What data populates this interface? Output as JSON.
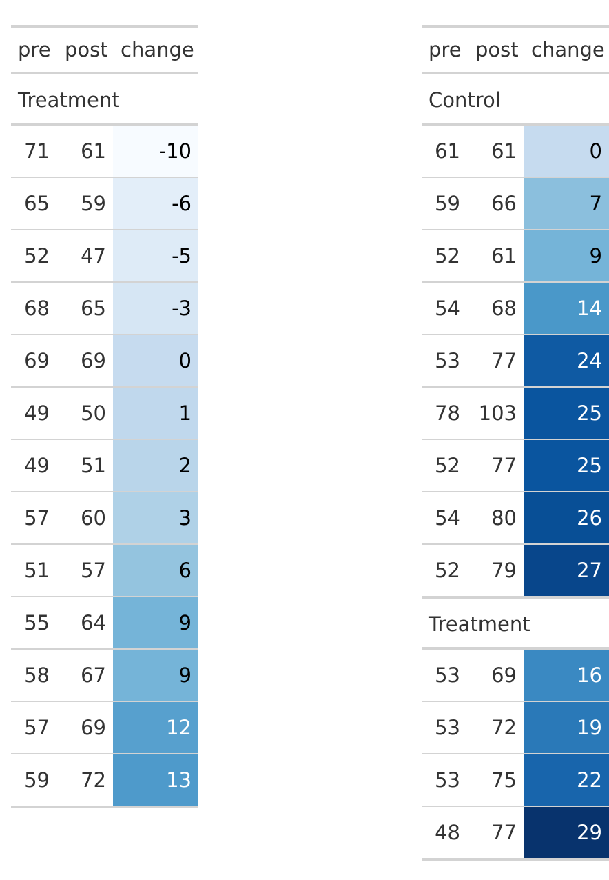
{
  "columns": [
    "pre",
    "post",
    "change"
  ],
  "tables": [
    {
      "groups": [
        {
          "label": "Treatment",
          "rows": [
            {
              "pre": "71",
              "post": "61",
              "change": "-10",
              "fill": "#f7fbff",
              "text": "#000000"
            },
            {
              "pre": "65",
              "post": "59",
              "change": "-6",
              "fill": "#e3eef9",
              "text": "#000000"
            },
            {
              "pre": "52",
              "post": "47",
              "change": "-5",
              "fill": "#deebf7",
              "text": "#000000"
            },
            {
              "pre": "68",
              "post": "65",
              "change": "-3",
              "fill": "#d6e6f4",
              "text": "#000000"
            },
            {
              "pre": "69",
              "post": "69",
              "change": "0",
              "fill": "#c6dbef",
              "text": "#000000"
            },
            {
              "pre": "49",
              "post": "50",
              "change": "1",
              "fill": "#c0d8ed",
              "text": "#000000"
            },
            {
              "pre": "49",
              "post": "51",
              "change": "2",
              "fill": "#b9d5ea",
              "text": "#000000"
            },
            {
              "pre": "57",
              "post": "60",
              "change": "3",
              "fill": "#afd1e7",
              "text": "#000000"
            },
            {
              "pre": "51",
              "post": "57",
              "change": "6",
              "fill": "#94c4df",
              "text": "#000000"
            },
            {
              "pre": "55",
              "post": "64",
              "change": "9",
              "fill": "#75b4d8",
              "text": "#000000"
            },
            {
              "pre": "58",
              "post": "67",
              "change": "9",
              "fill": "#75b4d8",
              "text": "#000000"
            },
            {
              "pre": "57",
              "post": "69",
              "change": "12",
              "fill": "#57a0ce",
              "text": "#ffffff"
            },
            {
              "pre": "59",
              "post": "72",
              "change": "13",
              "fill": "#4e9acb",
              "text": "#ffffff"
            }
          ]
        }
      ]
    },
    {
      "groups": [
        {
          "label": "Control",
          "rows": [
            {
              "pre": "61",
              "post": "61",
              "change": "0",
              "fill": "#c6dbef",
              "text": "#000000"
            },
            {
              "pre": "59",
              "post": "66",
              "change": "7",
              "fill": "#8bbfdd",
              "text": "#000000"
            },
            {
              "pre": "52",
              "post": "61",
              "change": "9",
              "fill": "#75b4d8",
              "text": "#000000"
            },
            {
              "pre": "54",
              "post": "68",
              "change": "14",
              "fill": "#4a98c9",
              "text": "#ffffff"
            },
            {
              "pre": "53",
              "post": "77",
              "change": "24",
              "fill": "#0f5aa3",
              "text": "#ffffff"
            },
            {
              "pre": "78",
              "post": "103",
              "change": "25",
              "fill": "#0a559f",
              "text": "#ffffff"
            },
            {
              "pre": "52",
              "post": "77",
              "change": "25",
              "fill": "#0a559f",
              "text": "#ffffff"
            },
            {
              "pre": "54",
              "post": "80",
              "change": "26",
              "fill": "#084f96",
              "text": "#ffffff"
            },
            {
              "pre": "52",
              "post": "79",
              "change": "27",
              "fill": "#08468b",
              "text": "#ffffff"
            }
          ]
        },
        {
          "label": "Treatment",
          "rows": [
            {
              "pre": "53",
              "post": "69",
              "change": "16",
              "fill": "#3a89c2",
              "text": "#ffffff"
            },
            {
              "pre": "53",
              "post": "72",
              "change": "19",
              "fill": "#2a79b8",
              "text": "#ffffff"
            },
            {
              "pre": "53",
              "post": "75",
              "change": "22",
              "fill": "#1865ac",
              "text": "#ffffff"
            },
            {
              "pre": "48",
              "post": "77",
              "change": "29",
              "fill": "#08336d",
              "text": "#ffffff"
            }
          ]
        }
      ]
    }
  ]
}
